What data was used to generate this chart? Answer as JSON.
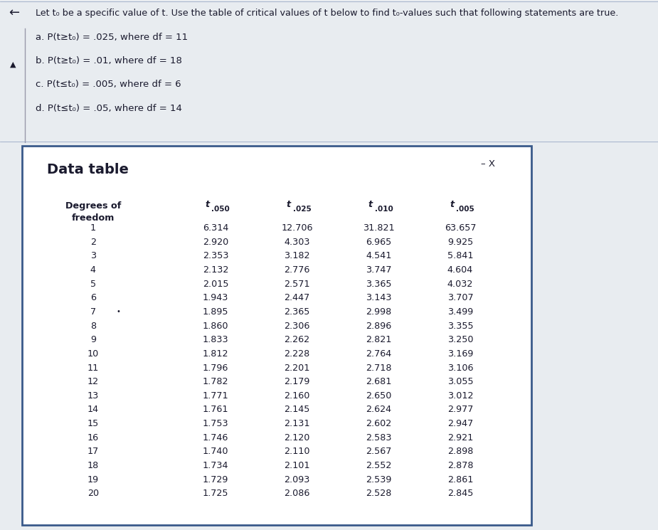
{
  "title_text": "Let t₀ be a specific value of t. Use the table of critical values of t below to find t₀-values such that following statements are true.",
  "statements": [
    "a. P(t≥t₀) = .025, where df = 11",
    "b. P(t≥t₀) = .01, where df = 18",
    "c. P(t≤t₀) = .005, where df = 6",
    "d. P(t≤t₀) = .05, where df = 14"
  ],
  "data_table_title": "Data table",
  "col_sub_labels": [
    ".050",
    ".025",
    ".010",
    ".005"
  ],
  "degrees_of_freedom": [
    1,
    2,
    3,
    4,
    5,
    6,
    7,
    8,
    9,
    10,
    11,
    12,
    13,
    14,
    15,
    16,
    17,
    18,
    19,
    20
  ],
  "t050": [
    6.314,
    2.92,
    2.353,
    2.132,
    2.015,
    1.943,
    1.895,
    1.86,
    1.833,
    1.812,
    1.796,
    1.782,
    1.771,
    1.761,
    1.753,
    1.746,
    1.74,
    1.734,
    1.729,
    1.725
  ],
  "t025": [
    12.706,
    4.303,
    3.182,
    2.776,
    2.571,
    2.447,
    2.365,
    2.306,
    2.262,
    2.228,
    2.201,
    2.179,
    2.16,
    2.145,
    2.131,
    2.12,
    2.11,
    2.101,
    2.093,
    2.086
  ],
  "t010": [
    31.821,
    6.965,
    4.541,
    3.747,
    3.365,
    3.143,
    2.998,
    2.896,
    2.821,
    2.764,
    2.718,
    2.681,
    2.65,
    2.624,
    2.602,
    2.583,
    2.567,
    2.552,
    2.539,
    2.528
  ],
  "t005": [
    63.657,
    9.925,
    5.841,
    4.604,
    4.032,
    3.707,
    3.499,
    3.355,
    3.25,
    3.169,
    3.106,
    3.055,
    3.012,
    2.977,
    2.947,
    2.921,
    2.898,
    2.878,
    2.861,
    2.845
  ],
  "bg_top": "#e8ecf0",
  "bg_panel": "#ffffff",
  "bg_inner_table": "#eef2f6",
  "border_color_panel": "#3a5a8a",
  "border_color_table": "#aabbcc",
  "text_color": "#1a1a2e",
  "title_fontsize": 9.2,
  "statement_fontsize": 9.5,
  "table_fontsize": 9.2,
  "header_fontsize": 9.2,
  "data_table_title_fontsize": 14
}
